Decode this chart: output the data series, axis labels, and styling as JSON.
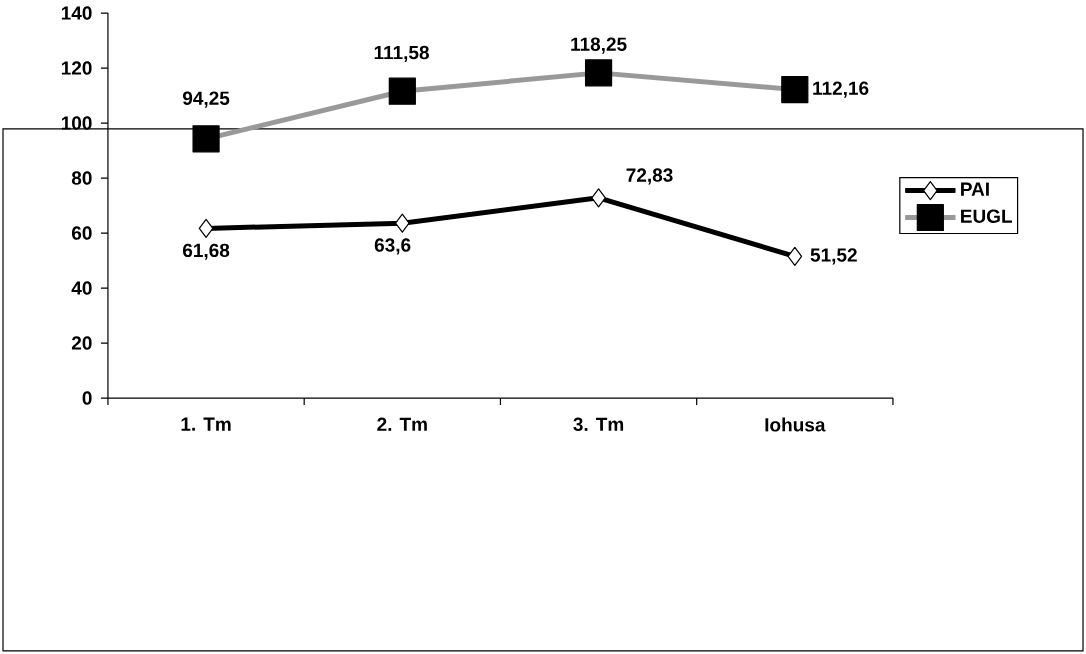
{
  "chart_data": {
    "type": "line",
    "categories": [
      "1. Tm",
      "2. Tm",
      "3. Tm",
      "Iohusa"
    ],
    "series": [
      {
        "name": "PAI",
        "color": "#000000",
        "marker": "diamond",
        "values": [
          61.68,
          63.6,
          72.83,
          51.52
        ],
        "value_labels": [
          "61,68",
          "63,6",
          "72,83",
          "51,52"
        ]
      },
      {
        "name": "EUGL",
        "color": "#999999",
        "marker": "square",
        "values": [
          94.25,
          111.58,
          118.25,
          112.16
        ],
        "value_labels": [
          "94,25",
          "111,58",
          "118,25",
          "112,16"
        ]
      }
    ],
    "ylim": [
      0,
      140
    ],
    "yticks": [
      0,
      20,
      40,
      60,
      80,
      100,
      120,
      140
    ],
    "grid": false,
    "legend": "right",
    "line_style": "solid"
  }
}
